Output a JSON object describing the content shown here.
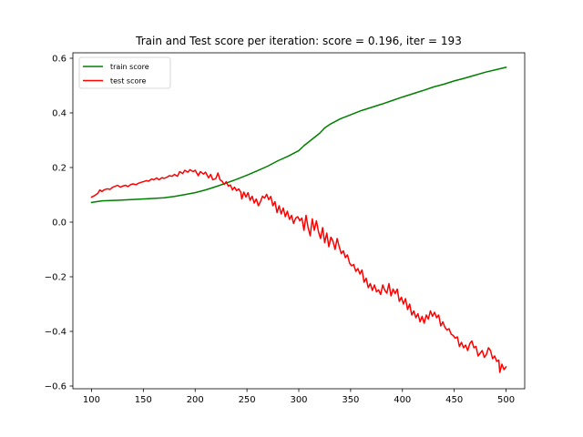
{
  "chart_data": {
    "type": "line",
    "title": "Train and Test score per iteration: score = 0.196, iter = 193",
    "xlabel": "",
    "ylabel": "",
    "xlim": [
      82,
      518
    ],
    "ylim": [
      -0.61,
      0.62
    ],
    "xticks": [
      100,
      150,
      200,
      250,
      300,
      350,
      400,
      450,
      500
    ],
    "xtick_labels": [
      "100",
      "150",
      "200",
      "250",
      "300",
      "350",
      "400",
      "450",
      "500"
    ],
    "yticks": [
      -0.6,
      -0.4,
      -0.2,
      0.0,
      0.2,
      0.4,
      0.6
    ],
    "ytick_labels": [
      "−0.6",
      "−0.4",
      "−0.2",
      "0.0",
      "0.2",
      "0.4",
      "0.6"
    ],
    "grid": false,
    "legend_position": "top-left",
    "series": [
      {
        "name": "train score",
        "color": "#008000",
        "points": [
          [
            100,
            0.072
          ],
          [
            110,
            0.078
          ],
          [
            125,
            0.08
          ],
          [
            140,
            0.083
          ],
          [
            155,
            0.086
          ],
          [
            170,
            0.089
          ],
          [
            180,
            0.094
          ],
          [
            190,
            0.101
          ],
          [
            200,
            0.108
          ],
          [
            210,
            0.118
          ],
          [
            220,
            0.13
          ],
          [
            230,
            0.143
          ],
          [
            240,
            0.157
          ],
          [
            250,
            0.172
          ],
          [
            260,
            0.188
          ],
          [
            270,
            0.205
          ],
          [
            280,
            0.225
          ],
          [
            290,
            0.242
          ],
          [
            300,
            0.262
          ],
          [
            305,
            0.28
          ],
          [
            310,
            0.295
          ],
          [
            320,
            0.325
          ],
          [
            325,
            0.345
          ],
          [
            330,
            0.358
          ],
          [
            340,
            0.378
          ],
          [
            350,
            0.393
          ],
          [
            360,
            0.408
          ],
          [
            370,
            0.42
          ],
          [
            380,
            0.432
          ],
          [
            390,
            0.445
          ],
          [
            400,
            0.458
          ],
          [
            410,
            0.47
          ],
          [
            420,
            0.482
          ],
          [
            430,
            0.495
          ],
          [
            440,
            0.505
          ],
          [
            450,
            0.517
          ],
          [
            460,
            0.527
          ],
          [
            470,
            0.538
          ],
          [
            480,
            0.549
          ],
          [
            490,
            0.558
          ],
          [
            500,
            0.567
          ]
        ]
      },
      {
        "name": "test score",
        "color": "#ff0000",
        "points": [
          [
            100,
            0.092
          ],
          [
            102,
            0.095
          ],
          [
            104,
            0.1
          ],
          [
            106,
            0.105
          ],
          [
            108,
            0.118
          ],
          [
            110,
            0.112
          ],
          [
            112,
            0.118
          ],
          [
            115,
            0.122
          ],
          [
            118,
            0.12
          ],
          [
            120,
            0.127
          ],
          [
            122,
            0.13
          ],
          [
            125,
            0.135
          ],
          [
            128,
            0.128
          ],
          [
            130,
            0.132
          ],
          [
            133,
            0.135
          ],
          [
            135,
            0.13
          ],
          [
            138,
            0.138
          ],
          [
            140,
            0.14
          ],
          [
            143,
            0.137
          ],
          [
            145,
            0.142
          ],
          [
            148,
            0.146
          ],
          [
            150,
            0.148
          ],
          [
            153,
            0.152
          ],
          [
            155,
            0.15
          ],
          [
            158,
            0.158
          ],
          [
            160,
            0.155
          ],
          [
            163,
            0.162
          ],
          [
            165,
            0.155
          ],
          [
            168,
            0.163
          ],
          [
            170,
            0.16
          ],
          [
            173,
            0.165
          ],
          [
            175,
            0.17
          ],
          [
            178,
            0.168
          ],
          [
            180,
            0.175
          ],
          [
            183,
            0.168
          ],
          [
            185,
            0.185
          ],
          [
            188,
            0.178
          ],
          [
            190,
            0.19
          ],
          [
            193,
            0.183
          ],
          [
            195,
            0.192
          ],
          [
            198,
            0.185
          ],
          [
            200,
            0.19
          ],
          [
            203,
            0.17
          ],
          [
            205,
            0.185
          ],
          [
            208,
            0.176
          ],
          [
            210,
            0.183
          ],
          [
            213,
            0.162
          ],
          [
            215,
            0.175
          ],
          [
            217,
            0.155
          ],
          [
            220,
            0.16
          ],
          [
            222,
            0.18
          ],
          [
            224,
            0.155
          ],
          [
            226,
            0.15
          ],
          [
            228,
            0.138
          ],
          [
            230,
            0.148
          ],
          [
            232,
            0.132
          ],
          [
            234,
            0.136
          ],
          [
            236,
            0.118
          ],
          [
            238,
            0.128
          ],
          [
            240,
            0.115
          ],
          [
            242,
            0.122
          ],
          [
            244,
            0.11
          ],
          [
            245,
            0.085
          ],
          [
            247,
            0.11
          ],
          [
            249,
            0.092
          ],
          [
            251,
            0.108
          ],
          [
            253,
            0.08
          ],
          [
            255,
            0.095
          ],
          [
            257,
            0.07
          ],
          [
            259,
            0.085
          ],
          [
            261,
            0.06
          ],
          [
            263,
            0.075
          ],
          [
            265,
            0.095
          ],
          [
            267,
            0.088
          ],
          [
            269,
            0.102
          ],
          [
            271,
            0.082
          ],
          [
            273,
            0.094
          ],
          [
            275,
            0.06
          ],
          [
            277,
            0.075
          ],
          [
            279,
            0.035
          ],
          [
            281,
            0.06
          ],
          [
            283,
            0.03
          ],
          [
            285,
            0.052
          ],
          [
            287,
            0.02
          ],
          [
            289,
            0.04
          ],
          [
            291,
            0.01
          ],
          [
            293,
            0.025
          ],
          [
            295,
            -0.005
          ],
          [
            297,
            0.015
          ],
          [
            299,
            0.02
          ],
          [
            301,
            0.005
          ],
          [
            303,
            0.015
          ],
          [
            305,
            -0.03
          ],
          [
            307,
            0.025
          ],
          [
            309,
            -0.02
          ],
          [
            311,
            -0.05
          ],
          [
            313,
            0.012
          ],
          [
            315,
            -0.03
          ],
          [
            317,
            0.005
          ],
          [
            319,
            -0.035
          ],
          [
            321,
            -0.06
          ],
          [
            323,
            -0.02
          ],
          [
            325,
            -0.075
          ],
          [
            327,
            -0.04
          ],
          [
            329,
            -0.09
          ],
          [
            331,
            -0.055
          ],
          [
            333,
            -0.07
          ],
          [
            335,
            -0.1
          ],
          [
            337,
            -0.06
          ],
          [
            339,
            -0.09
          ],
          [
            341,
            -0.115
          ],
          [
            343,
            -0.105
          ],
          [
            345,
            -0.13
          ],
          [
            347,
            -0.12
          ],
          [
            349,
            -0.15
          ],
          [
            351,
            -0.16
          ],
          [
            353,
            -0.155
          ],
          [
            355,
            -0.18
          ],
          [
            357,
            -0.17
          ],
          [
            359,
            -0.19
          ],
          [
            361,
            -0.175
          ],
          [
            363,
            -0.22
          ],
          [
            365,
            -0.205
          ],
          [
            367,
            -0.24
          ],
          [
            369,
            -0.225
          ],
          [
            371,
            -0.25
          ],
          [
            373,
            -0.23
          ],
          [
            375,
            -0.255
          ],
          [
            377,
            -0.248
          ],
          [
            379,
            -0.265
          ],
          [
            381,
            -0.23
          ],
          [
            383,
            -0.25
          ],
          [
            385,
            -0.26
          ],
          [
            387,
            -0.225
          ],
          [
            389,
            -0.27
          ],
          [
            391,
            -0.245
          ],
          [
            393,
            -0.262
          ],
          [
            395,
            -0.245
          ],
          [
            397,
            -0.29
          ],
          [
            399,
            -0.275
          ],
          [
            401,
            -0.3
          ],
          [
            403,
            -0.28
          ],
          [
            405,
            -0.32
          ],
          [
            407,
            -0.3
          ],
          [
            409,
            -0.34
          ],
          [
            411,
            -0.325
          ],
          [
            413,
            -0.35
          ],
          [
            415,
            -0.335
          ],
          [
            417,
            -0.365
          ],
          [
            419,
            -0.345
          ],
          [
            421,
            -0.37
          ],
          [
            423,
            -0.34
          ],
          [
            425,
            -0.355
          ],
          [
            427,
            -0.325
          ],
          [
            429,
            -0.345
          ],
          [
            431,
            -0.33
          ],
          [
            433,
            -0.35
          ],
          [
            435,
            -0.34
          ],
          [
            437,
            -0.38
          ],
          [
            439,
            -0.365
          ],
          [
            441,
            -0.385
          ],
          [
            443,
            -0.395
          ],
          [
            445,
            -0.39
          ],
          [
            447,
            -0.41
          ],
          [
            449,
            -0.415
          ],
          [
            451,
            -0.425
          ],
          [
            453,
            -0.42
          ],
          [
            455,
            -0.455
          ],
          [
            457,
            -0.44
          ],
          [
            459,
            -0.46
          ],
          [
            461,
            -0.45
          ],
          [
            463,
            -0.47
          ],
          [
            465,
            -0.445
          ],
          [
            467,
            -0.435
          ],
          [
            469,
            -0.46
          ],
          [
            471,
            -0.455
          ],
          [
            473,
            -0.49
          ],
          [
            475,
            -0.48
          ],
          [
            477,
            -0.47
          ],
          [
            479,
            -0.495
          ],
          [
            481,
            -0.485
          ],
          [
            483,
            -0.46
          ],
          [
            485,
            -0.47
          ],
          [
            487,
            -0.5
          ],
          [
            489,
            -0.49
          ],
          [
            491,
            -0.51
          ],
          [
            493,
            -0.505
          ],
          [
            494,
            -0.55
          ],
          [
            496,
            -0.52
          ],
          [
            498,
            -0.54
          ],
          [
            500,
            -0.53
          ]
        ]
      }
    ]
  }
}
